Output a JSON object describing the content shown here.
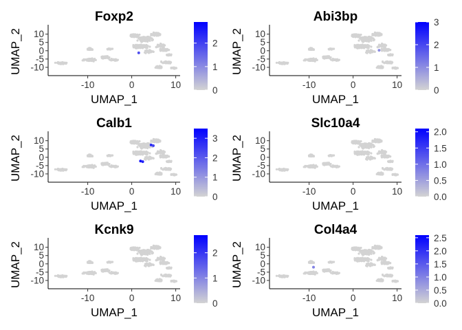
{
  "chart_data": [
    {
      "type": "scatter",
      "title": "Foxp2",
      "xlabel": "UMAP_1",
      "ylabel": "UMAP_2",
      "xlim": [
        -19,
        11
      ],
      "ylim": [
        -15,
        14
      ],
      "xticks": [
        -10,
        0,
        10
      ],
      "yticks": [
        10,
        5,
        0,
        -5,
        -10
      ],
      "legend": {
        "position": "right",
        "min": 0,
        "max": 2.9,
        "ticks": [
          0,
          1,
          2
        ],
        "low_color": "#d3d3d3",
        "high_color": "#0000ff"
      },
      "colored_cells": [
        {
          "x": 1.6,
          "y": -1.3,
          "value": 1.8
        }
      ]
    },
    {
      "type": "scatter",
      "title": "Abi3bp",
      "xlabel": "UMAP_1",
      "ylabel": "UMAP_2",
      "xlim": [
        -19,
        11
      ],
      "ylim": [
        -15,
        14
      ],
      "xticks": [
        -10,
        0,
        10
      ],
      "yticks": [
        10,
        5,
        0,
        -5,
        -10
      ],
      "legend": {
        "position": "right",
        "min": 0,
        "max": 3,
        "ticks": [
          0,
          1,
          2,
          3
        ],
        "low_color": "#d3d3d3",
        "high_color": "#0000ff"
      },
      "colored_cells": [
        {
          "x": 5.9,
          "y": 0.3,
          "value": 1.0
        }
      ]
    },
    {
      "type": "scatter",
      "title": "Calb1",
      "xlabel": "UMAP_1",
      "ylabel": "UMAP_2",
      "xlim": [
        -19,
        11
      ],
      "ylim": [
        -15,
        14
      ],
      "xticks": [
        -10,
        0,
        10
      ],
      "yticks": [
        10,
        5,
        0,
        -5,
        -10
      ],
      "legend": {
        "position": "right",
        "min": 0,
        "max": 3.5,
        "ticks": [
          0,
          1,
          2,
          3
        ],
        "low_color": "#d3d3d3",
        "high_color": "#0000ff"
      },
      "colored_cells": [
        {
          "x": 4.4,
          "y": 7.4,
          "value": 2.8
        },
        {
          "x": 4.9,
          "y": 7.0,
          "value": 2.4
        },
        {
          "x": 2.0,
          "y": -2.3,
          "value": 3.2
        },
        {
          "x": 2.5,
          "y": -2.6,
          "value": 2.9
        }
      ]
    },
    {
      "type": "scatter",
      "title": "Slc10a4",
      "xlabel": "UMAP_1",
      "ylabel": "UMAP_2",
      "xlim": [
        -19,
        11
      ],
      "ylim": [
        -15,
        14
      ],
      "xticks": [
        -10,
        0,
        10
      ],
      "yticks": [
        10,
        5,
        0,
        -5,
        -10
      ],
      "legend": {
        "position": "right",
        "min": 0,
        "max": 2.1,
        "ticks": [
          0.0,
          0.5,
          1.0,
          1.5,
          2.0
        ],
        "low_color": "#d3d3d3",
        "high_color": "#0000ff"
      },
      "colored_cells": []
    },
    {
      "type": "scatter",
      "title": "Kcnk9",
      "xlabel": "UMAP_1",
      "ylabel": "UMAP_2",
      "xlim": [
        -19,
        11
      ],
      "ylim": [
        -15,
        14
      ],
      "xticks": [
        -10,
        0,
        10
      ],
      "yticks": [
        10,
        5,
        0,
        -5,
        -10
      ],
      "legend": {
        "position": "right",
        "min": 0,
        "max": 2.7,
        "ticks": [
          0,
          1,
          2
        ],
        "low_color": "#d3d3d3",
        "high_color": "#0000ff"
      },
      "colored_cells": []
    },
    {
      "type": "scatter",
      "title": "Col4a4",
      "xlabel": "UMAP_1",
      "ylabel": "UMAP_2",
      "xlim": [
        -19,
        11
      ],
      "ylim": [
        -15,
        14
      ],
      "xticks": [
        -10,
        0,
        10
      ],
      "yticks": [
        10,
        5,
        0,
        -5,
        -10
      ],
      "legend": {
        "position": "right",
        "min": 0,
        "max": 2.6,
        "ticks": [
          0.0,
          0.5,
          1.0,
          1.5,
          2.0,
          2.5
        ],
        "low_color": "#d3d3d3",
        "high_color": "#0000ff"
      },
      "colored_cells": [
        {
          "x": -9.0,
          "y": -2.0,
          "value": 1.0
        }
      ]
    }
  ],
  "umap_clusters": [
    {
      "cx": -16,
      "cy": -7.5,
      "rx": 1.8,
      "ry": 0.9,
      "n": 60
    },
    {
      "cx": -9.5,
      "cy": -5.5,
      "rx": 2.2,
      "ry": 1.2,
      "n": 70
    },
    {
      "cx": -6.0,
      "cy": -4.0,
      "rx": 1.6,
      "ry": 1.0,
      "n": 50
    },
    {
      "cx": -4.0,
      "cy": -5.5,
      "rx": 1.4,
      "ry": 0.8,
      "n": 35
    },
    {
      "cx": -9.5,
      "cy": 1.0,
      "rx": 1.2,
      "ry": 1.0,
      "n": 30
    },
    {
      "cx": -5.0,
      "cy": 1.0,
      "rx": 1.0,
      "ry": 0.7,
      "n": 20
    },
    {
      "cx": 0.5,
      "cy": 9.0,
      "rx": 1.8,
      "ry": 1.4,
      "n": 60
    },
    {
      "cx": 3.0,
      "cy": 7.0,
      "rx": 2.5,
      "ry": 2.5,
      "n": 140
    },
    {
      "cx": 5.5,
      "cy": 10.0,
      "rx": 1.5,
      "ry": 1.8,
      "n": 60
    },
    {
      "cx": 2.0,
      "cy": 2.5,
      "rx": 2.8,
      "ry": 2.0,
      "n": 140
    },
    {
      "cx": 6.5,
      "cy": 3.0,
      "rx": 1.8,
      "ry": 1.5,
      "n": 70
    },
    {
      "cx": 4.0,
      "cy": -0.5,
      "rx": 1.6,
      "ry": 1.3,
      "n": 60
    },
    {
      "cx": 7.5,
      "cy": 0.5,
      "rx": 1.6,
      "ry": 1.0,
      "n": 40
    },
    {
      "cx": 8.5,
      "cy": -2.5,
      "rx": 1.0,
      "ry": 0.7,
      "n": 20
    },
    {
      "cx": 8.0,
      "cy": -7.0,
      "rx": 1.8,
      "ry": 1.0,
      "n": 50
    },
    {
      "cx": 6.0,
      "cy": -10.0,
      "rx": 1.4,
      "ry": 1.2,
      "n": 45
    },
    {
      "cx": 9.5,
      "cy": -10.5,
      "rx": 1.0,
      "ry": 0.7,
      "n": 20
    }
  ]
}
